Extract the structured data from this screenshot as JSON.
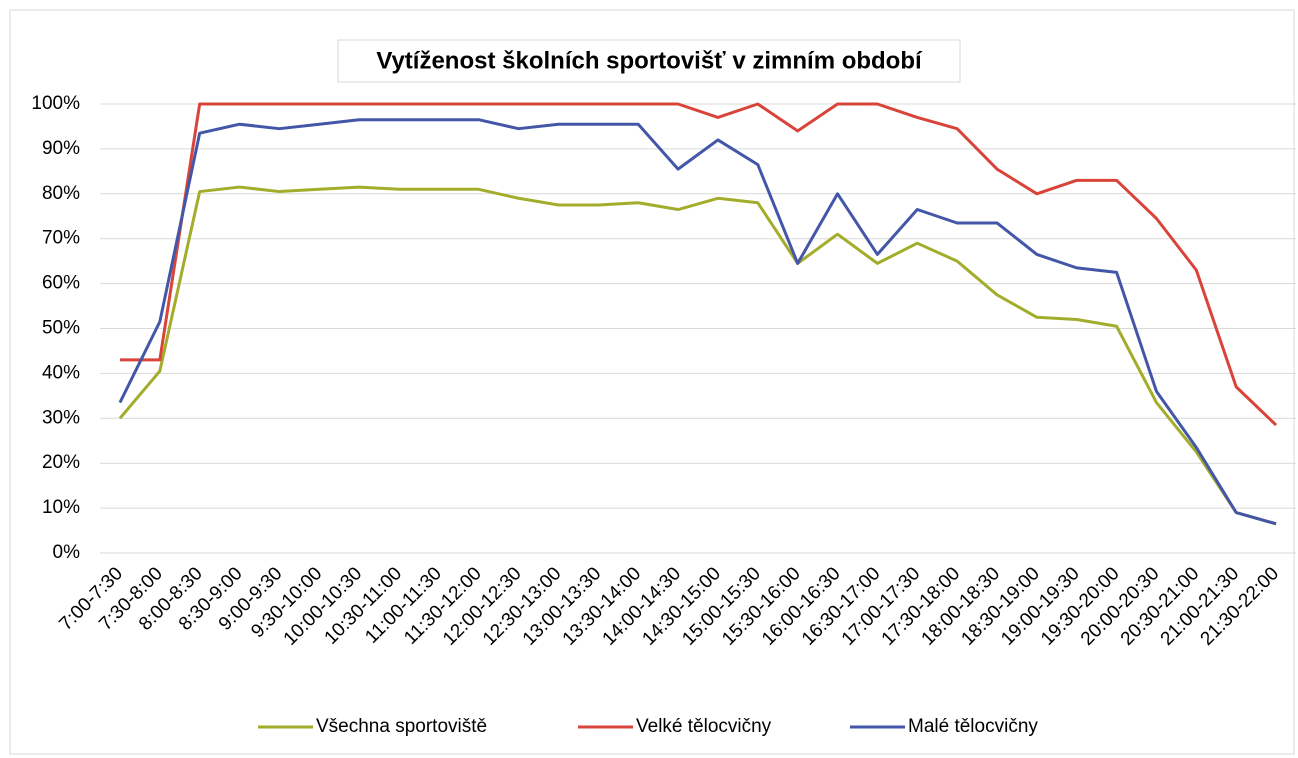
{
  "chart_data": {
    "type": "line",
    "title": "Vytíženost školních sportovišť v zimním období",
    "categories": [
      "7:00-7:30",
      "7:30-8:00",
      "8:00-8:30",
      "8:30-9:00",
      "9:00-9:30",
      "9:30-10:00",
      "10:00-10:30",
      "10:30-11:00",
      "11:00-11:30",
      "11:30-12:00",
      "12:00-12:30",
      "12:30-13:00",
      "13:00-13:30",
      "13:30-14:00",
      "14:00-14:30",
      "14:30-15:00",
      "15:00-15:30",
      "15:30-16:00",
      "16:00-16:30",
      "16:30-17:00",
      "17:00-17:30",
      "17:30-18:00",
      "18:00-18:30",
      "18:30-19:00",
      "19:00-19:30",
      "19:30-20:00",
      "20:00-20:30",
      "20:30-21:00",
      "21:00-21:30",
      "21:30-22:00"
    ],
    "series": [
      {
        "name": "Všechna sportoviště",
        "color": "#a3ad2b",
        "values": [
          30,
          40.5,
          80.5,
          81.5,
          80.5,
          81,
          81.5,
          81,
          81,
          81,
          79,
          77.5,
          77.5,
          78,
          76.5,
          79,
          78,
          64.5,
          71,
          64.5,
          69,
          65,
          57.5,
          52.5,
          52,
          50.5,
          33.5,
          22.5,
          9,
          6.5
        ]
      },
      {
        "name": "Velké tělocvičny",
        "color": "#d9443a",
        "values": [
          43,
          43,
          100,
          100,
          100,
          100,
          100,
          100,
          100,
          100,
          100,
          100,
          100,
          100,
          100,
          97,
          100,
          94,
          100,
          100,
          97,
          94.5,
          85.5,
          80,
          83,
          83,
          74.5,
          63,
          37,
          28.5
        ]
      },
      {
        "name": "Malé tělocvičny",
        "color": "#4356a8",
        "values": [
          33.5,
          51.5,
          93.5,
          95.5,
          94.5,
          95.5,
          96.5,
          96.5,
          96.5,
          96.5,
          94.5,
          95.5,
          95.5,
          95.5,
          85.5,
          92,
          86.5,
          64.5,
          80,
          66.5,
          76.5,
          73.5,
          73.5,
          66.5,
          63.5,
          62.5,
          36,
          23.5,
          9,
          6.5
        ]
      }
    ],
    "ylim": [
      0,
      100
    ],
    "yticks": [
      {
        "value": 0,
        "label": "0%"
      },
      {
        "value": 10,
        "label": "10%"
      },
      {
        "value": 20,
        "label": "20%"
      },
      {
        "value": 30,
        "label": "30%"
      },
      {
        "value": 40,
        "label": "40%"
      },
      {
        "value": 50,
        "label": "50%"
      },
      {
        "value": 60,
        "label": "60%"
      },
      {
        "value": 70,
        "label": "70%"
      },
      {
        "value": 80,
        "label": "80%"
      },
      {
        "value": 90,
        "label": "90%"
      },
      {
        "value": 100,
        "label": "100%"
      }
    ],
    "grid": true,
    "legend": "bottom"
  }
}
